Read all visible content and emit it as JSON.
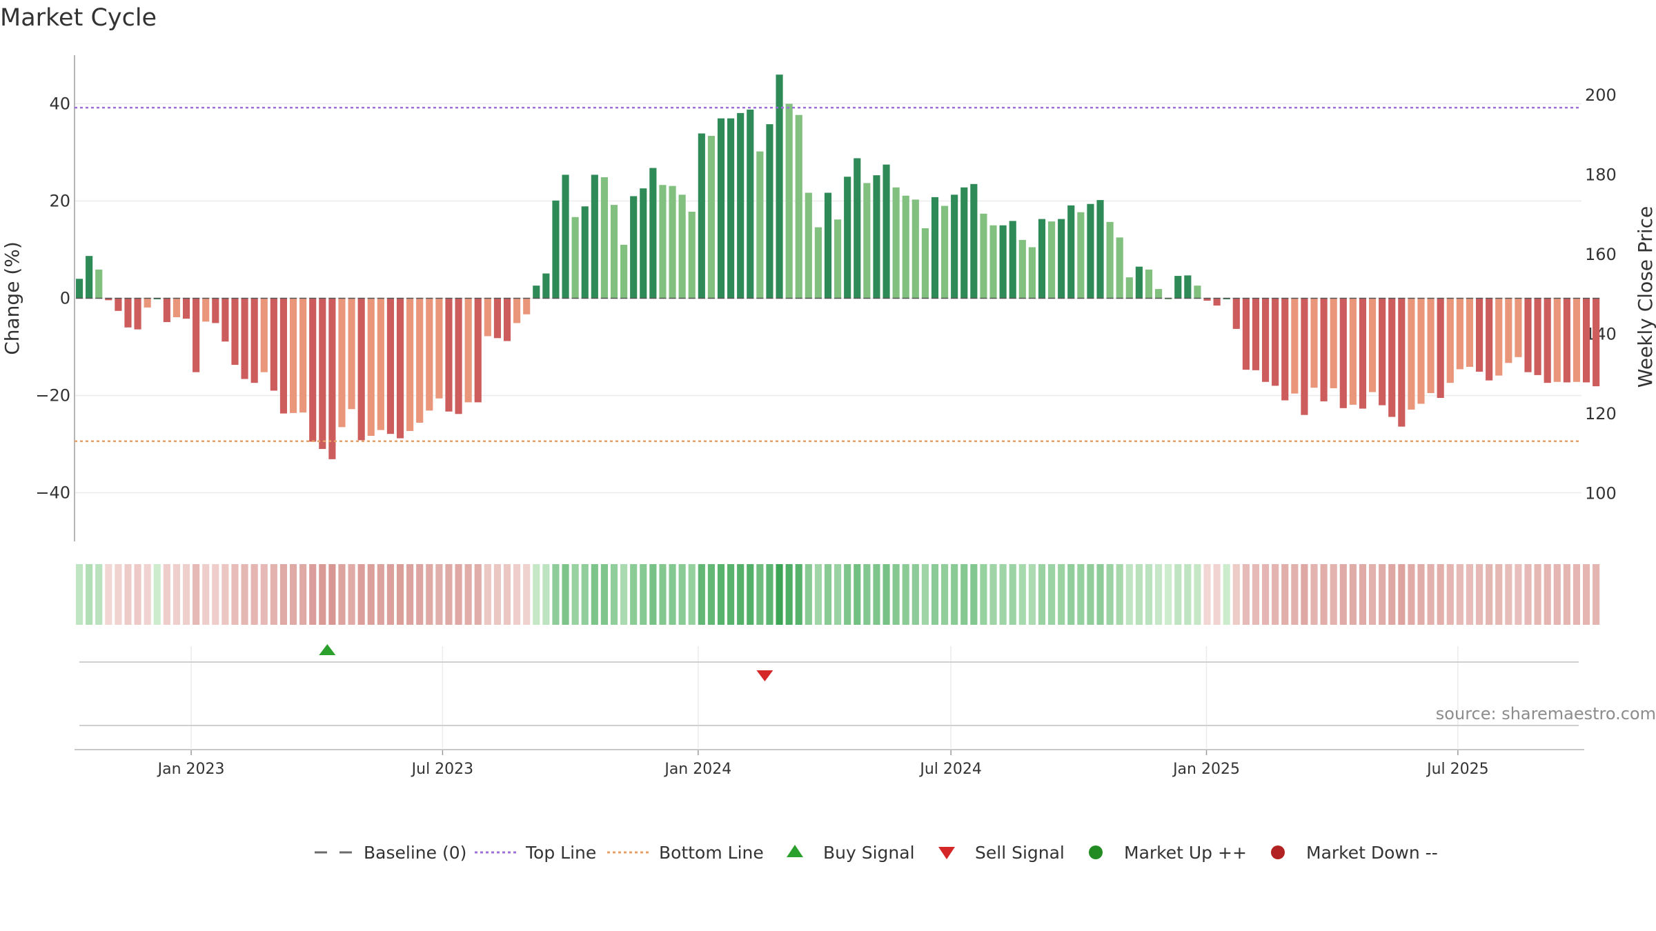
{
  "chart_data": {
    "title": "Market Cycle",
    "type": "bar",
    "ylabel_left": "Change (%)",
    "ylabel_right": "Weekly Close Price",
    "ylim_left": [
      -50,
      50
    ],
    "yticks_left": [
      "40",
      "20",
      "0",
      "−20",
      "−40"
    ],
    "yticks_left_values": [
      40,
      20,
      0,
      -20,
      -40
    ],
    "ylim_right": [
      88,
      210
    ],
    "yticks_right": [
      "200",
      "180",
      "160",
      "140",
      "120",
      "100"
    ],
    "yticks_right_values": [
      200,
      180,
      160,
      140,
      120,
      100
    ],
    "x_start": "2022-10-09",
    "x_end": "2025-09-28",
    "xticks": [
      {
        "label": "Jan 2023",
        "date": "2023-01-01"
      },
      {
        "label": "Jul 2023",
        "date": "2023-07-01"
      },
      {
        "label": "Jan 2024",
        "date": "2024-01-01"
      },
      {
        "label": "Jul 2024",
        "date": "2024-07-01"
      },
      {
        "label": "Jan 2025",
        "date": "2025-01-01"
      },
      {
        "label": "Jul 2025",
        "date": "2025-07-01"
      }
    ],
    "series_change": {
      "start_date": "2022-10-09",
      "interval_days": 7,
      "values": [
        4,
        8.7,
        5.9,
        -0.4,
        -2.6,
        -6,
        -6.4,
        -1.9,
        0,
        -4.9,
        -3.9,
        -4.2,
        -15.2,
        -4.8,
        -5.1,
        -8.9,
        -13.7,
        -16.6,
        -17.4,
        -15.2,
        -19,
        -23.7,
        -23.6,
        -23.5,
        -29.5,
        -31,
        -33.1,
        -26.5,
        -22.8,
        -29.2,
        -28.3,
        -27.1,
        -27.9,
        -28.8,
        -27.3,
        -25.6,
        -23.1,
        -20.6,
        -23.3,
        -23.8,
        -21.4,
        -21.4,
        -7.8,
        -8.2,
        -8.8,
        -5.1,
        -3.3,
        2.6,
        5.1,
        20.1,
        25.4,
        16.7,
        18.9,
        25.4,
        24.9,
        19.2,
        11,
        21,
        22.6,
        26.8,
        23.3,
        23.1,
        21.3,
        17.8,
        33.9,
        33.4,
        37,
        37,
        38.1,
        38.8,
        30.2,
        35.8,
        46,
        40,
        37.7,
        21.7,
        14.6,
        21.7,
        16.2,
        25,
        28.8,
        23.7,
        25.3,
        27.5,
        22.8,
        21.1,
        20.3,
        14.4,
        20.8,
        19,
        21.3,
        22.8,
        23.5,
        17.4,
        15,
        15,
        15.9,
        12,
        10.5,
        16.3,
        15.8,
        16.3,
        19.1,
        17.7,
        19.4,
        20.2,
        15.7,
        12.5,
        4.3,
        6.5,
        5.9,
        1.9,
        0,
        4.6,
        4.7,
        2.6,
        -0.5,
        -1.5,
        0,
        -6.3,
        -14.7,
        -14.8,
        -17.2,
        -18,
        -21,
        -19.6,
        -24,
        -18.4,
        -21.2,
        -18.5,
        -22.6,
        -21.9,
        -22.7,
        -19.3,
        -22,
        -24.4,
        -26.4,
        -22.9,
        -21.7,
        -19.5,
        -20.5,
        -17.4,
        -14.6,
        -14.1,
        -15.1,
        -16.9,
        -15.9,
        -13.3,
        -12.1,
        -15.2,
        -15.8,
        -17.4,
        -17.2,
        -17.3,
        -17.2,
        -17.3,
        -18.1
      ]
    },
    "reference_lines": [
      {
        "name": "Baseline (0)",
        "value": 0,
        "axis": "left",
        "color": "#6b6b6b",
        "style": "dashed"
      },
      {
        "name": "Top Line",
        "value": 39.2,
        "axis": "left",
        "color": "#9b6fd6",
        "style": "dotted"
      },
      {
        "name": "Bottom Line",
        "value": -29.4,
        "axis": "left",
        "color": "#e8a066",
        "style": "dotted"
      }
    ],
    "signals": [
      {
        "type": "buy",
        "name": "Buy Signal",
        "date": "2023-04-09",
        "color": "#2ca02c"
      },
      {
        "type": "sell",
        "name": "Sell Signal",
        "date": "2024-02-18",
        "color": "#d62728"
      }
    ],
    "legend": {
      "position": "bottom-center",
      "items": [
        {
          "label": "Baseline (0)",
          "marker": "dash",
          "color": "#6b6b6b"
        },
        {
          "label": "Top Line",
          "marker": "dotted",
          "color": "#9b6fd6"
        },
        {
          "label": "Bottom Line",
          "marker": "dotted",
          "color": "#e8a066"
        },
        {
          "label": "Buy Signal",
          "marker": "triangle-up",
          "color": "#2ca02c"
        },
        {
          "label": "Sell Signal",
          "marker": "triangle-down",
          "color": "#d62728"
        },
        {
          "label": "Market Up ++",
          "marker": "circle",
          "color": "#228b22"
        },
        {
          "label": "Market Down --",
          "marker": "circle",
          "color": "#b22222"
        }
      ]
    },
    "colors": {
      "up_strong": "#2e8b57",
      "up_weak": "#81c07f",
      "down_strong": "#cd5c5c",
      "down_weak": "#e9967a",
      "grid": "#ebebeb"
    },
    "grid": true,
    "source": "source: sharemaestro.com"
  }
}
